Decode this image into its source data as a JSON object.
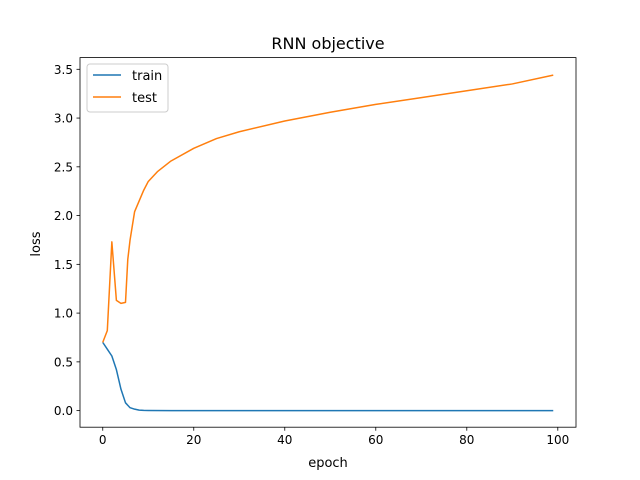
{
  "chart_data": {
    "type": "line",
    "title": "RNN objective",
    "xlabel": "epoch",
    "ylabel": "loss",
    "xlim": [
      -5,
      104
    ],
    "ylim": [
      -0.17,
      3.62
    ],
    "x_ticks": [
      0,
      20,
      40,
      60,
      80,
      100
    ],
    "x_tick_labels": [
      "0",
      "20",
      "40",
      "60",
      "80",
      "100"
    ],
    "y_ticks": [
      0.0,
      0.5,
      1.0,
      1.5,
      2.0,
      2.5,
      3.0,
      3.5
    ],
    "y_tick_labels": [
      "0.0",
      "0.5",
      "1.0",
      "1.5",
      "2.0",
      "2.5",
      "3.0",
      "3.5"
    ],
    "grid": false,
    "legend_position": "top-left",
    "series": [
      {
        "name": "train",
        "color": "#1f77b4",
        "x": [
          0,
          1,
          2,
          3,
          4,
          5,
          6,
          7,
          8,
          9,
          10,
          15,
          20,
          30,
          40,
          50,
          60,
          70,
          80,
          90,
          99
        ],
        "y": [
          0.7,
          0.63,
          0.56,
          0.42,
          0.22,
          0.08,
          0.03,
          0.015,
          0.005,
          0.002,
          0.001,
          0.0,
          0.0,
          0.0,
          0.0,
          0.0,
          0.0,
          0.0,
          0.0,
          0.0,
          0.0
        ]
      },
      {
        "name": "test",
        "color": "#ff7f0e",
        "x": [
          0,
          1,
          2,
          3,
          4,
          5,
          5.5,
          6,
          7,
          8,
          9,
          10,
          12,
          15,
          20,
          25,
          30,
          40,
          50,
          60,
          70,
          80,
          90,
          99
        ],
        "y": [
          0.7,
          0.82,
          1.73,
          1.13,
          1.1,
          1.11,
          1.55,
          1.75,
          2.04,
          2.15,
          2.26,
          2.35,
          2.45,
          2.56,
          2.69,
          2.79,
          2.86,
          2.97,
          3.06,
          3.14,
          3.21,
          3.28,
          3.35,
          3.44
        ]
      }
    ]
  }
}
